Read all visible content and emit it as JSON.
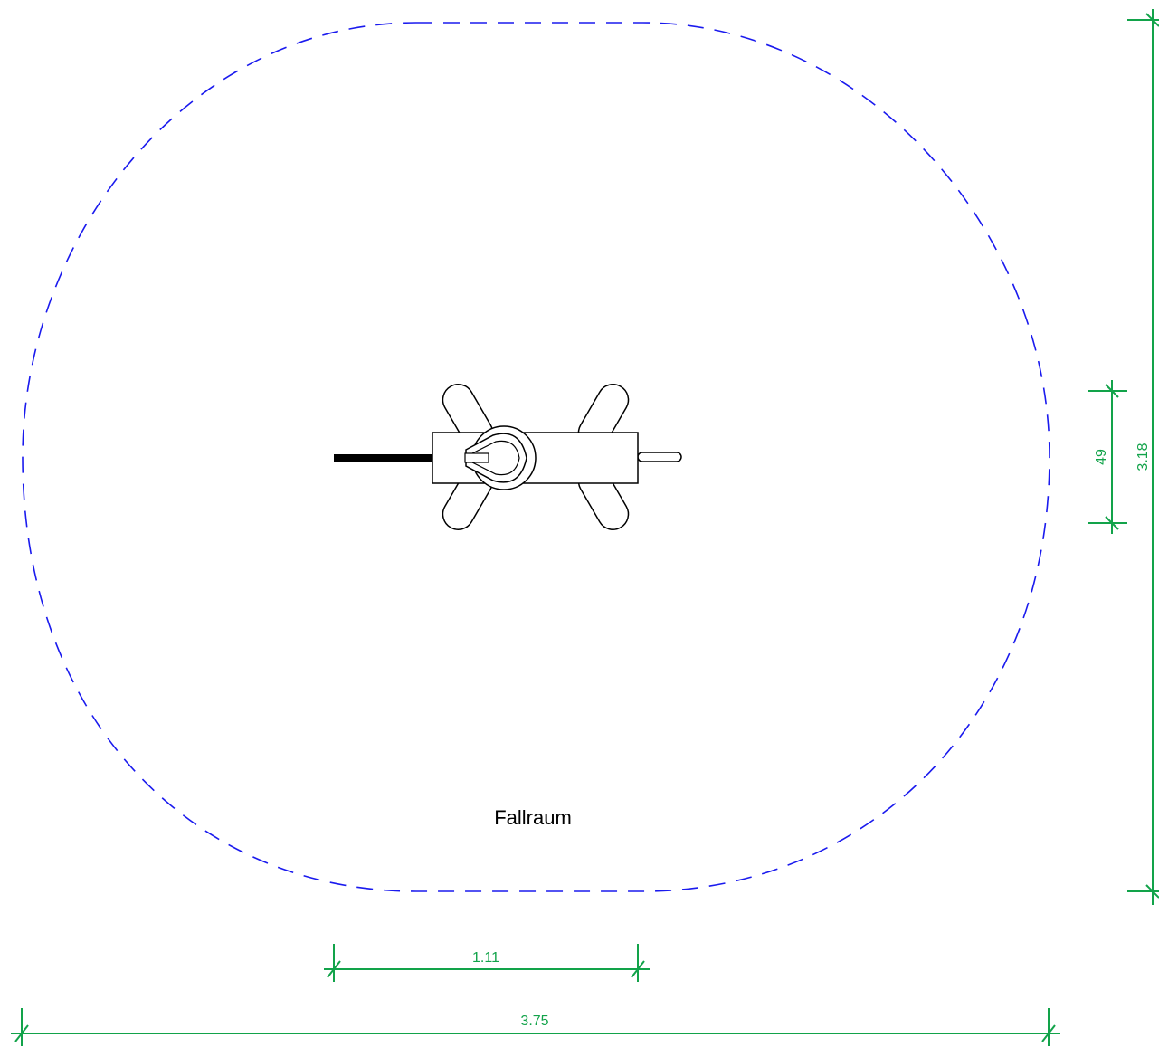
{
  "drawing": {
    "area_label": "Fallraum",
    "dimensions": {
      "overall_width": "3.75",
      "equipment_length": "1.11",
      "overall_height": "3.18",
      "equipment_width": "49"
    },
    "colors": {
      "fall_zone": "#1a1aee",
      "dimension": "#12a34a",
      "equipment": "#000000"
    }
  }
}
